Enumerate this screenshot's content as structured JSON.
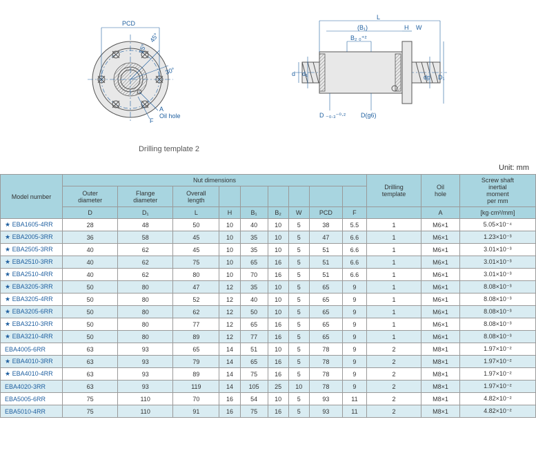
{
  "diagrams": {
    "left_labels": {
      "pcd": "PCD",
      "ang45": "45°",
      "ang30": "30°",
      "ang15": "15°",
      "a": "A",
      "f": "F",
      "oil": "Oil hole"
    },
    "right_labels": {
      "l": "L",
      "b1": "(B₁)",
      "h": "H",
      "w": "W",
      "b2": "B₂ ₀⁺²",
      "d1s": "d₁",
      "d": "d",
      "dtol": "D ₋₀.₃⁻⁰·²",
      "dg6": "D(g6)",
      "dp": "dp",
      "d1b": "D₁"
    },
    "caption": "Drilling template 2",
    "unit": "Unit: mm"
  },
  "table": {
    "header_group": "Nut dimensions",
    "columns_top": [
      "",
      "",
      "",
      "",
      "",
      "",
      "",
      "",
      "",
      "",
      "Drilling",
      "Oil",
      "Screw shaft"
    ],
    "columns_mid": [
      "",
      "Outer",
      "Flange",
      "Overall",
      "",
      "",
      "",
      "",
      "",
      "",
      "template",
      "hole",
      "inertial"
    ],
    "columns_mid2": [
      "Model number",
      "diameter",
      "diameter",
      "length",
      "",
      "",
      "",
      "",
      "",
      "",
      "",
      "",
      "moment"
    ],
    "columns_mid3": [
      "",
      "",
      "",
      "",
      "",
      "",
      "",
      "",
      "",
      "",
      "",
      "",
      "per mm"
    ],
    "columns_bot": [
      "",
      "D",
      "D₁",
      "L",
      "H",
      "B₁",
      "B₂",
      "W",
      "PCD",
      "F",
      "",
      "A",
      "[kg·cm²/mm]"
    ],
    "rows": [
      {
        "m": "★ EBA1605-4RR",
        "d": "28",
        "d1": "48",
        "l": "50",
        "h": "10",
        "b1": "40",
        "b2": "10",
        "w": "5",
        "pcd": "38",
        "f": "5.5",
        "dt": "1",
        "a": "M6×1",
        "in": "5.05×10⁻⁴",
        "s": 0
      },
      {
        "m": "★ EBA2005-3RR",
        "d": "36",
        "d1": "58",
        "l": "45",
        "h": "10",
        "b1": "35",
        "b2": "10",
        "w": "5",
        "pcd": "47",
        "f": "6.6",
        "dt": "1",
        "a": "M6×1",
        "in": "1.23×10⁻³",
        "s": 1
      },
      {
        "m": "★ EBA2505-3RR",
        "d": "40",
        "d1": "62",
        "l": "45",
        "h": "10",
        "b1": "35",
        "b2": "10",
        "w": "5",
        "pcd": "51",
        "f": "6.6",
        "dt": "1",
        "a": "M6×1",
        "in": "3.01×10⁻³",
        "s": 0
      },
      {
        "m": "★ EBA2510-3RR",
        "d": "40",
        "d1": "62",
        "l": "75",
        "h": "10",
        "b1": "65",
        "b2": "16",
        "w": "5",
        "pcd": "51",
        "f": "6.6",
        "dt": "1",
        "a": "M6×1",
        "in": "3.01×10⁻³",
        "s": 1
      },
      {
        "m": "★ EBA2510-4RR",
        "d": "40",
        "d1": "62",
        "l": "80",
        "h": "10",
        "b1": "70",
        "b2": "16",
        "w": "5",
        "pcd": "51",
        "f": "6.6",
        "dt": "1",
        "a": "M6×1",
        "in": "3.01×10⁻³",
        "s": 0
      },
      {
        "m": "★ EBA3205-3RR",
        "d": "50",
        "d1": "80",
        "l": "47",
        "h": "12",
        "b1": "35",
        "b2": "10",
        "w": "5",
        "pcd": "65",
        "f": "9",
        "dt": "1",
        "a": "M6×1",
        "in": "8.08×10⁻³",
        "s": 1
      },
      {
        "m": "★ EBA3205-4RR",
        "d": "50",
        "d1": "80",
        "l": "52",
        "h": "12",
        "b1": "40",
        "b2": "10",
        "w": "5",
        "pcd": "65",
        "f": "9",
        "dt": "1",
        "a": "M6×1",
        "in": "8.08×10⁻³",
        "s": 0
      },
      {
        "m": "★ EBA3205-6RR",
        "d": "50",
        "d1": "80",
        "l": "62",
        "h": "12",
        "b1": "50",
        "b2": "10",
        "w": "5",
        "pcd": "65",
        "f": "9",
        "dt": "1",
        "a": "M6×1",
        "in": "8.08×10⁻³",
        "s": 1
      },
      {
        "m": "★ EBA3210-3RR",
        "d": "50",
        "d1": "80",
        "l": "77",
        "h": "12",
        "b1": "65",
        "b2": "16",
        "w": "5",
        "pcd": "65",
        "f": "9",
        "dt": "1",
        "a": "M6×1",
        "in": "8.08×10⁻³",
        "s": 0
      },
      {
        "m": "★ EBA3210-4RR",
        "d": "50",
        "d1": "80",
        "l": "89",
        "h": "12",
        "b1": "77",
        "b2": "16",
        "w": "5",
        "pcd": "65",
        "f": "9",
        "dt": "1",
        "a": "M6×1",
        "in": "8.08×10⁻³",
        "s": 1
      },
      {
        "m": "   EBA4005-6RR",
        "d": "63",
        "d1": "93",
        "l": "65",
        "h": "14",
        "b1": "51",
        "b2": "10",
        "w": "5",
        "pcd": "78",
        "f": "9",
        "dt": "2",
        "a": "M8×1",
        "in": "1.97×10⁻²",
        "s": 0
      },
      {
        "m": "★ EBA4010-3RR",
        "d": "63",
        "d1": "93",
        "l": "79",
        "h": "14",
        "b1": "65",
        "b2": "16",
        "w": "5",
        "pcd": "78",
        "f": "9",
        "dt": "2",
        "a": "M8×1",
        "in": "1.97×10⁻²",
        "s": 1
      },
      {
        "m": "★ EBA4010-4RR",
        "d": "63",
        "d1": "93",
        "l": "89",
        "h": "14",
        "b1": "75",
        "b2": "16",
        "w": "5",
        "pcd": "78",
        "f": "9",
        "dt": "2",
        "a": "M8×1",
        "in": "1.97×10⁻²",
        "s": 0
      },
      {
        "m": "   EBA4020-3RR",
        "d": "63",
        "d1": "93",
        "l": "119",
        "h": "14",
        "b1": "105",
        "b2": "25",
        "w": "10",
        "pcd": "78",
        "f": "9",
        "dt": "2",
        "a": "M8×1",
        "in": "1.97×10⁻²",
        "s": 1
      },
      {
        "m": "   EBA5005-6RR",
        "d": "75",
        "d1": "110",
        "l": "70",
        "h": "16",
        "b1": "54",
        "b2": "10",
        "w": "5",
        "pcd": "93",
        "f": "11",
        "dt": "2",
        "a": "M8×1",
        "in": "4.82×10⁻²",
        "s": 0
      },
      {
        "m": "   EBA5010-4RR",
        "d": "75",
        "d1": "110",
        "l": "91",
        "h": "16",
        "b1": "75",
        "b2": "16",
        "w": "5",
        "pcd": "93",
        "f": "11",
        "dt": "2",
        "a": "M8×1",
        "in": "4.82×10⁻²",
        "s": 1
      }
    ]
  },
  "colors": {
    "header_bg": "#a8d5e0",
    "shaded_bg": "#d9ecf2",
    "border": "#999",
    "link": "#2060a0"
  }
}
